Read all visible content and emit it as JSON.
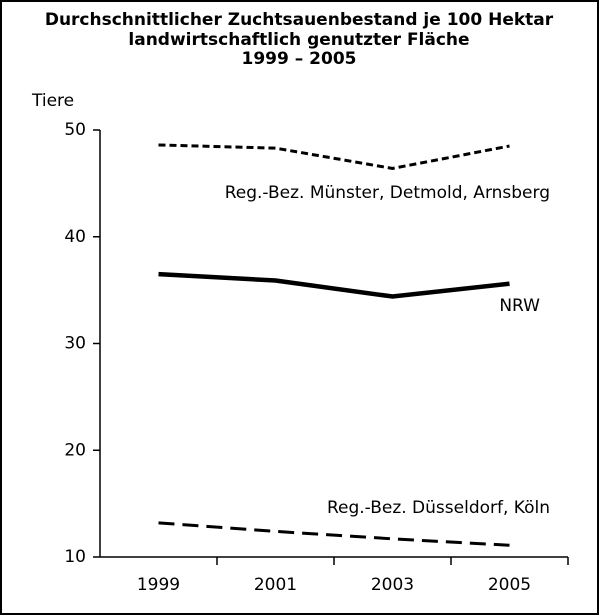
{
  "chart_data": {
    "type": "line",
    "title": [
      "Durchschnittlicher Zuchtsauenbestand je 100 Hektar",
      "landwirtschaftlich genutzter Fläche",
      "1999 – 2005"
    ],
    "y_label": "Tiere",
    "categories": [
      "1999",
      "2001",
      "2003",
      "2005"
    ],
    "series": [
      {
        "name": "Reg.-Bez. Münster, Detmold, Arnsberg",
        "color": "#000000",
        "dash": "short",
        "values": [
          48.6,
          48.3,
          46.4,
          48.5
        ]
      },
      {
        "name": "NRW",
        "color": "#000000",
        "dash": "solid",
        "values": [
          36.5,
          35.9,
          34.4,
          35.6
        ]
      },
      {
        "name": "Reg.-Bez. Düsseldorf, Köln",
        "color": "#000000",
        "dash": "long",
        "values": [
          13.2,
          12.4,
          11.7,
          11.1
        ]
      }
    ],
    "ylim": [
      10,
      50
    ],
    "yticks": [
      10,
      20,
      30,
      40,
      50
    ],
    "grid": false
  }
}
